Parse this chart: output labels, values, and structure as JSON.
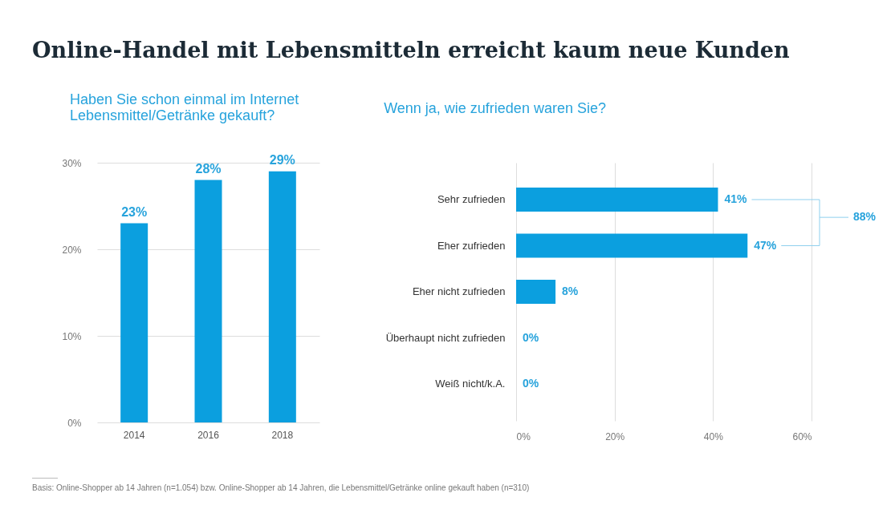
{
  "chart_data": [
    {
      "type": "bar",
      "title": "Online-Handel mit Lebensmitteln erreicht kaum neue Kunden",
      "subtitle": "Haben Sie schon einmal im Internet Lebensmittel/Getränke gekauft?",
      "categories": [
        "2014",
        "2016",
        "2018"
      ],
      "values": [
        23,
        28,
        29
      ],
      "color": "#0b9fdf",
      "ylim": [
        0,
        30
      ],
      "yticks": [
        {
          "value": 0,
          "label": "0%"
        },
        {
          "value": 10,
          "label": "10%"
        },
        {
          "value": 20,
          "label": "20%"
        },
        {
          "value": 30,
          "label": "30%"
        }
      ],
      "grid": "y",
      "value_labels": [
        "23%",
        "28%",
        "29%"
      ],
      "annotations": [
        "Basis: Online-Shopper ab 14 Jahren (n=1.054) bzw. Online-Shopper ab 14 Jahren, die Lebensmittel/Getränke online gekauft haben (n=310)"
      ]
    },
    {
      "type": "bar",
      "orientation": "horizontal",
      "title": "Wenn ja, wie zufrieden waren Sie?",
      "categories": [
        "Sehr zufrieden",
        "Eher zufrieden",
        "Eher nicht zufrieden",
        "Überhaupt nicht zufrieden",
        "Weiß nicht/k.A."
      ],
      "values": [
        41,
        47,
        8,
        0,
        0
      ],
      "color": "#0b9fdf",
      "xlim": [
        0,
        60
      ],
      "xticks": [
        {
          "value": 0,
          "label": "0%"
        },
        {
          "value": 20,
          "label": "20%"
        },
        {
          "value": 40,
          "label": "40%"
        },
        {
          "value": 60,
          "label": "60%"
        }
      ],
      "grid": "x",
      "value_labels": [
        "41%",
        "47%",
        "8%",
        "0%",
        "0%"
      ],
      "annotations": [
        "88%"
      ]
    }
  ]
}
